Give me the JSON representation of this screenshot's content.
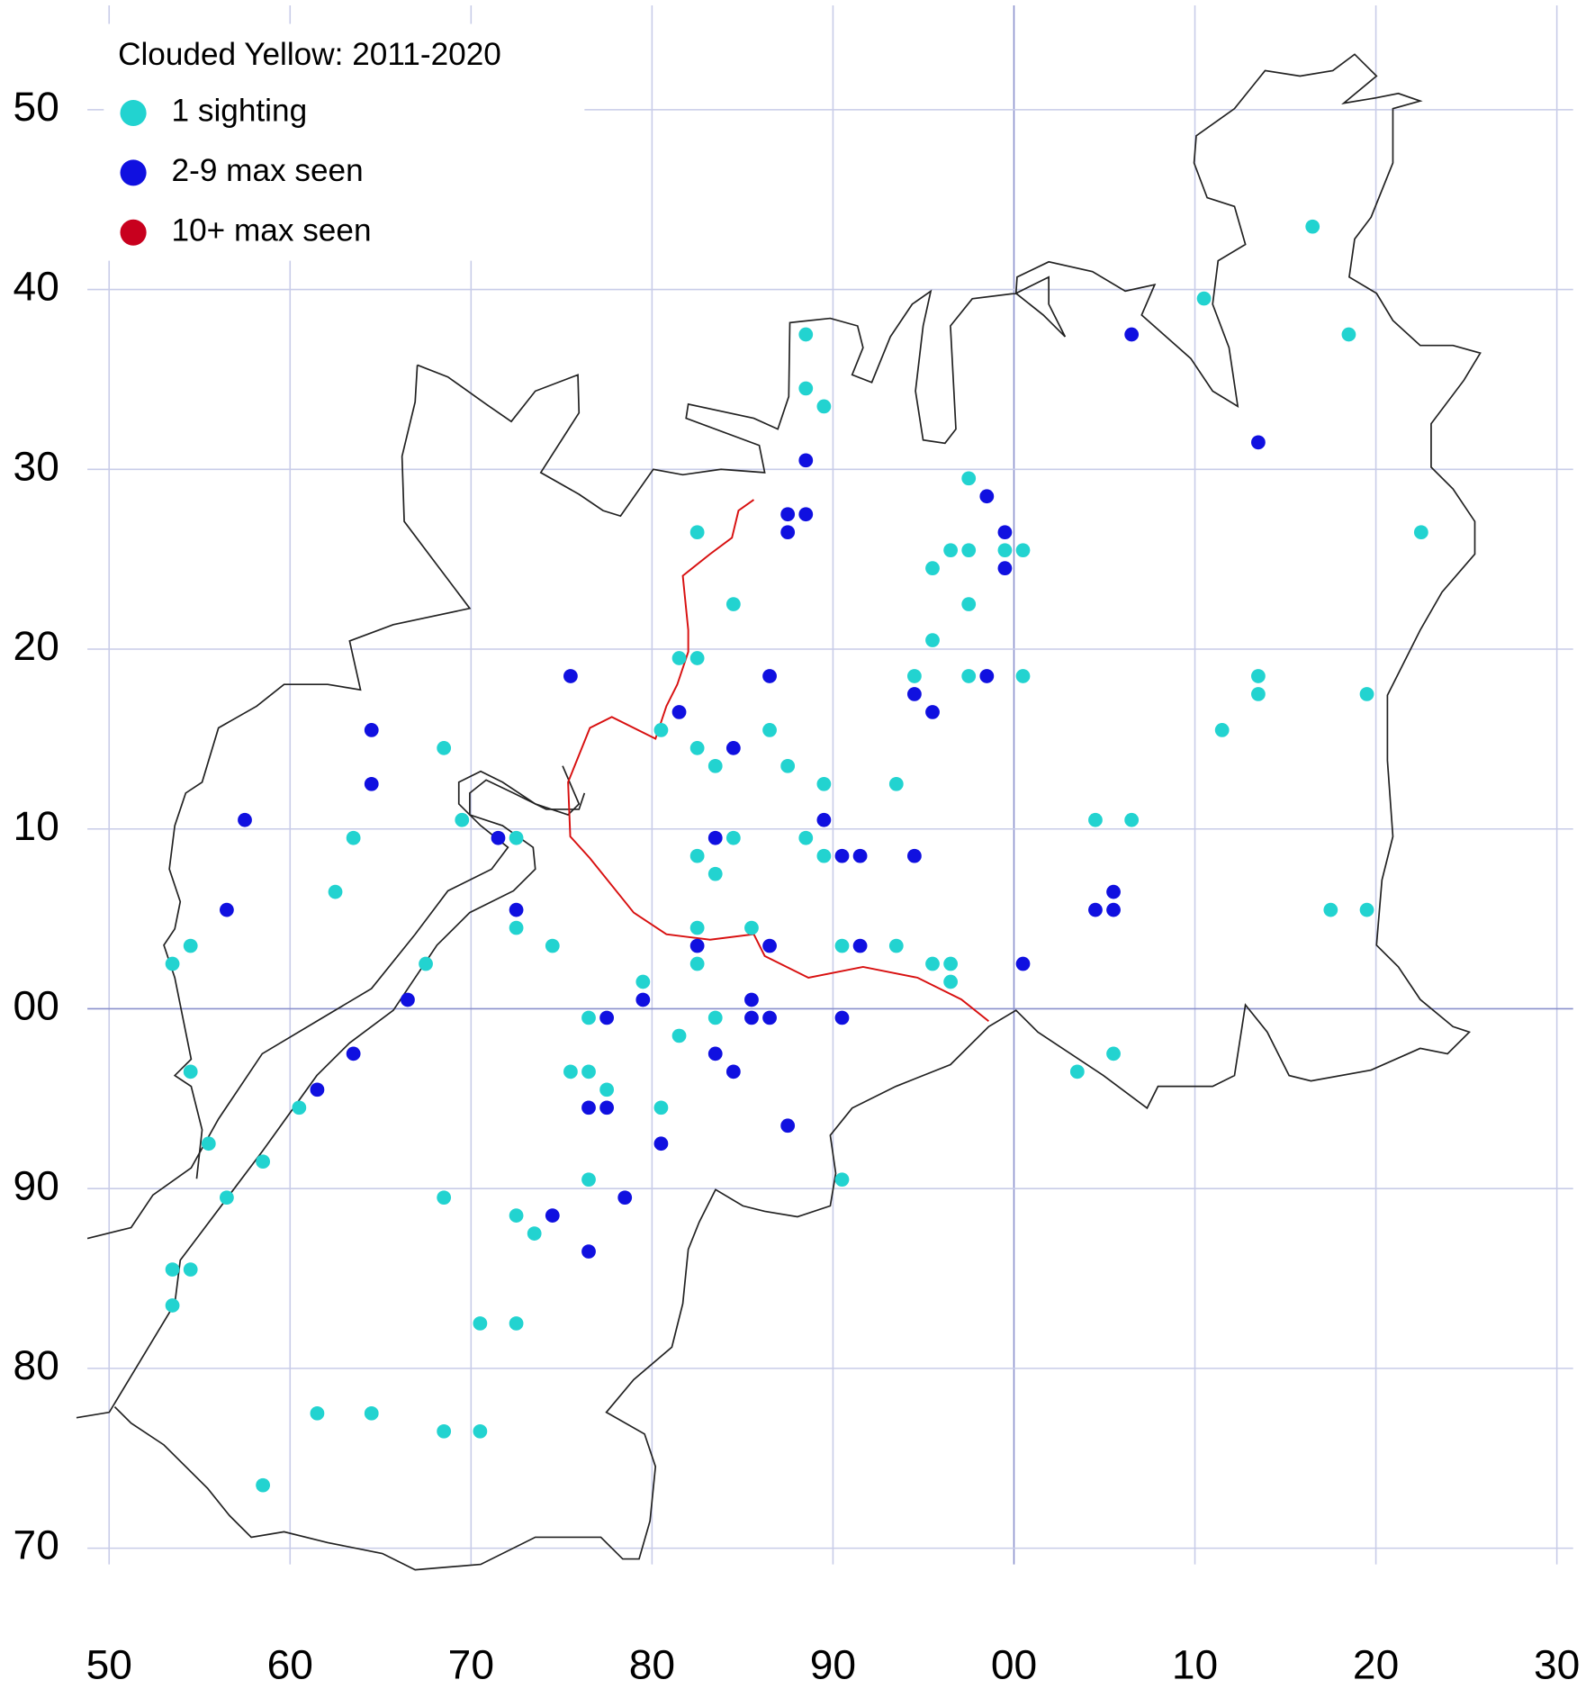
{
  "chart_data": {
    "type": "scatter",
    "title": "Clouded Yellow:  2011-2020",
    "xlim": [
      48.8,
      130.9
    ],
    "ylim": [
      69.1,
      155.8
    ],
    "xticks": [
      50,
      60,
      70,
      80,
      90,
      {
        "value": 100,
        "label": "00"
      },
      {
        "value": 110,
        "label": "10"
      },
      {
        "value": 120,
        "label": "20"
      },
      {
        "value": 130,
        "label": "30"
      }
    ],
    "yticks": [
      70,
      80,
      90,
      {
        "value": 100,
        "label": "00"
      },
      {
        "value": 110,
        "label": "10"
      },
      {
        "value": 120,
        "label": "20"
      },
      {
        "value": 130,
        "label": "30"
      },
      {
        "value": 140,
        "label": "40"
      },
      {
        "value": 150,
        "label": "50"
      }
    ],
    "grid": true,
    "legend": "top-left",
    "series": [
      {
        "name": "1 sighting",
        "color": "#22d3d0",
        "x": [
          88.5,
          88.5,
          89.5,
          82.5,
          84.5,
          81.5,
          82.5,
          80.5,
          82.5,
          83.5,
          86.5,
          87.5,
          89.5,
          93.5,
          88.5,
          89.5,
          82.5,
          84.5,
          83.5,
          72.5,
          69.5,
          68.5,
          63.5,
          62.5,
          54.5,
          53.5,
          67.5,
          72.5,
          74.5,
          79.5,
          82.5,
          82.5,
          85.5,
          90.5,
          93.5,
          95.5,
          96.5,
          96.5,
          95.5,
          97.5,
          95.5,
          96.5,
          97.5,
          97.5,
          99.5,
          100.5,
          94.5,
          97.5,
          100.5,
          104.5,
          106.5,
          110.5,
          116.5,
          118.5,
          122.5,
          111.5,
          113.5,
          113.5,
          119.5,
          117.5,
          119.5,
          105.5,
          103.5,
          76.5,
          83.5,
          81.5,
          75.5,
          76.5,
          77.5,
          80.5,
          76.5,
          90.5,
          72.5,
          73.5,
          68.5,
          70.5,
          72.5,
          54.5,
          55.5,
          60.5,
          58.5,
          56.5,
          53.5,
          54.5,
          53.5,
          61.5,
          64.5,
          68.5,
          70.5,
          58.5
        ],
        "y": [
          137.5,
          134.5,
          133.5,
          126.5,
          122.5,
          119.5,
          119.5,
          115.5,
          114.5,
          113.5,
          115.5,
          113.5,
          112.5,
          112.5,
          109.5,
          108.5,
          108.5,
          109.5,
          107.5,
          109.5,
          110.5,
          114.5,
          109.5,
          106.5,
          103.5,
          102.5,
          102.5,
          104.5,
          103.5,
          101.5,
          104.5,
          102.5,
          104.5,
          103.5,
          103.5,
          102.5,
          102.5,
          101.5,
          120.5,
          122.5,
          124.5,
          125.5,
          125.5,
          129.5,
          125.5,
          125.5,
          118.5,
          118.5,
          118.5,
          110.5,
          110.5,
          139.5,
          143.5,
          137.5,
          126.5,
          115.5,
          118.5,
          117.5,
          117.5,
          105.5,
          105.5,
          97.5,
          96.5,
          99.5,
          99.5,
          98.5,
          96.5,
          96.5,
          95.5,
          94.5,
          90.5,
          90.5,
          88.5,
          87.5,
          89.5,
          82.5,
          82.5,
          96.5,
          92.5,
          94.5,
          91.5,
          89.5,
          85.5,
          85.5,
          83.5,
          77.5,
          77.5,
          76.5,
          76.5,
          73.5
        ]
      },
      {
        "name": "2-9 max seen",
        "color": "#1010e0",
        "x": [
          106.5,
          113.5,
          88.5,
          87.5,
          88.5,
          87.5,
          98.5,
          99.5,
          99.5,
          98.5,
          94.5,
          95.5,
          75.5,
          81.5,
          86.5,
          84.5,
          89.5,
          90.5,
          91.5,
          94.5,
          83.5,
          71.5,
          72.5,
          82.5,
          86.5,
          91.5,
          100.5,
          104.5,
          105.5,
          105.5,
          64.5,
          64.5,
          57.5,
          56.5,
          66.5,
          63.5,
          61.5,
          79.5,
          77.5,
          85.5,
          85.5,
          86.5,
          90.5,
          83.5,
          84.5,
          76.5,
          77.5,
          80.5,
          87.5,
          74.5,
          78.5,
          76.5
        ],
        "y": [
          137.5,
          131.5,
          130.5,
          127.5,
          127.5,
          126.5,
          128.5,
          126.5,
          124.5,
          118.5,
          117.5,
          116.5,
          118.5,
          116.5,
          118.5,
          114.5,
          110.5,
          108.5,
          108.5,
          108.5,
          109.5,
          109.5,
          105.5,
          103.5,
          103.5,
          103.5,
          102.5,
          105.5,
          106.5,
          105.5,
          115.5,
          112.5,
          110.5,
          105.5,
          100.5,
          97.5,
          95.5,
          100.5,
          99.5,
          100.5,
          99.5,
          99.5,
          99.5,
          97.5,
          96.5,
          94.5,
          94.5,
          92.5,
          93.5,
          88.5,
          89.5,
          86.5
        ]
      },
      {
        "name": "10+ max seen",
        "color": "#c8001e",
        "x": [],
        "y": []
      }
    ]
  }
}
